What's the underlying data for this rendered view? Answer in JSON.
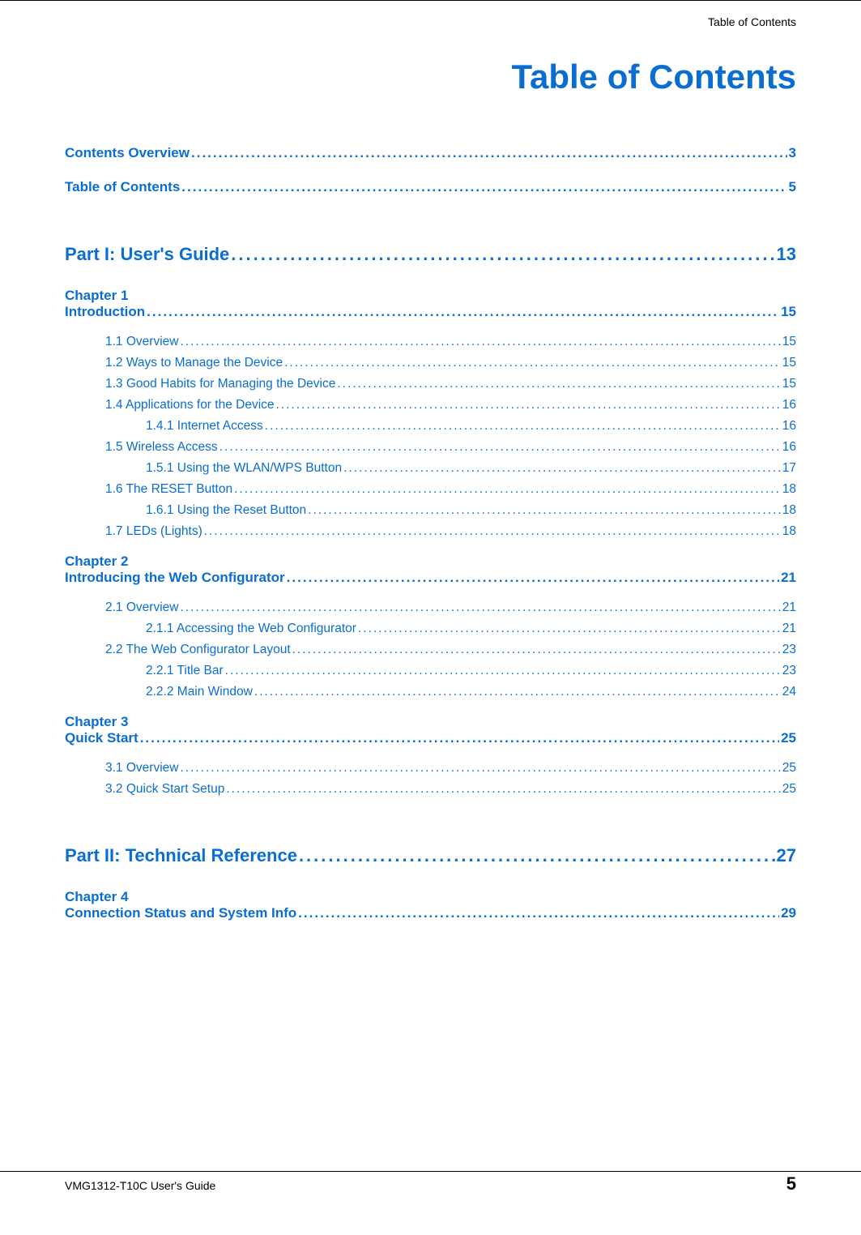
{
  "colors": {
    "accent": "#0a6dd1",
    "text": "#000000",
    "background": "#ffffff"
  },
  "font": {
    "family": "Arial, Helvetica, sans-serif",
    "title_size_pt": 32,
    "part_size_pt": 17,
    "chapter_size_pt": 13,
    "body_size_pt": 12
  },
  "header": {
    "label": "Table of Contents"
  },
  "title": "Table of Contents",
  "footer": {
    "guide": "VMG1312-T10C User's Guide",
    "page": "5"
  },
  "toc": {
    "top": [
      {
        "label": "Contents Overview",
        "page": "3"
      },
      {
        "label": "Table of Contents",
        "page": "5"
      }
    ],
    "part1": {
      "label": "Part I: User's Guide",
      "page": "13"
    },
    "ch1": {
      "label": "Chapter   1",
      "title": "Introduction",
      "page": "15",
      "items": [
        {
          "lvl": 1,
          "label": "1.1 Overview",
          "page": "15"
        },
        {
          "lvl": 1,
          "label": "1.2 Ways to Manage the Device",
          "page": "15"
        },
        {
          "lvl": 1,
          "label": "1.3 Good Habits for Managing the Device",
          "page": "15"
        },
        {
          "lvl": 1,
          "label": "1.4 Applications for the Device",
          "page": "16"
        },
        {
          "lvl": 2,
          "label": "1.4.1 Internet Access",
          "page": "16"
        },
        {
          "lvl": 1,
          "label": "1.5 Wireless Access",
          "page": "16"
        },
        {
          "lvl": 2,
          "label": "1.5.1 Using the WLAN/WPS Button",
          "page": "17"
        },
        {
          "lvl": 1,
          "label": "1.6 The RESET Button",
          "page": "18"
        },
        {
          "lvl": 2,
          "label": "1.6.1 Using the Reset Button",
          "page": "18"
        },
        {
          "lvl": 1,
          "label": "1.7 LEDs (Lights)",
          "page": "18"
        }
      ]
    },
    "ch2": {
      "label": "Chapter   2",
      "title": "Introducing the Web Configurator",
      "page": "21",
      "items": [
        {
          "lvl": 1,
          "label": "2.1 Overview",
          "page": "21"
        },
        {
          "lvl": 2,
          "label": "2.1.1 Accessing the Web Configurator",
          "page": "21"
        },
        {
          "lvl": 1,
          "label": "2.2 The Web Configurator Layout",
          "page": "23"
        },
        {
          "lvl": 2,
          "label": "2.2.1 Title Bar",
          "page": "23"
        },
        {
          "lvl": 2,
          "label": "2.2.2 Main Window",
          "page": "24"
        }
      ]
    },
    "ch3": {
      "label": "Chapter   3",
      "title": "Quick Start",
      "page": "25",
      "items": [
        {
          "lvl": 1,
          "label": "3.1 Overview",
          "page": "25"
        },
        {
          "lvl": 1,
          "label": "3.2 Quick Start Setup",
          "page": "25"
        }
      ]
    },
    "part2": {
      "label": "Part II: Technical Reference",
      "page": "27"
    },
    "ch4": {
      "label": "Chapter   4",
      "title": "Connection Status and System Info",
      "page": "29"
    }
  }
}
